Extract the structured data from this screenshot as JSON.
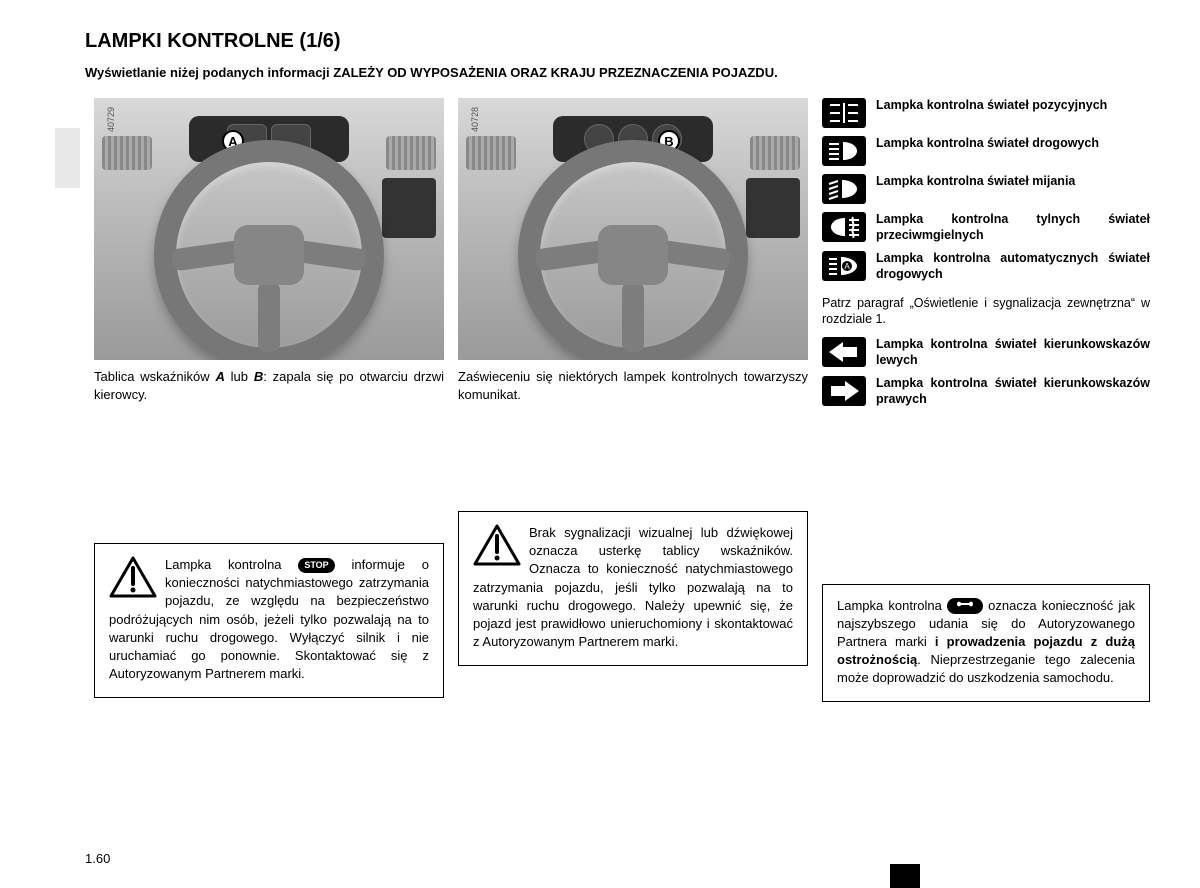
{
  "page": {
    "title": "LAMPKI KONTROLNE (1/6)",
    "subtitle": "Wyświetlanie niżej podanych informacji ZALEŻY OD WYPOSAŻENIA ORAZ KRAJU PRZEZNACZENIA POJAZDU.",
    "number": "1.60"
  },
  "figures": {
    "a": {
      "ref": "40729",
      "callout": "A"
    },
    "b": {
      "ref": "40728",
      "callout": "B"
    }
  },
  "captions": {
    "left_pre": "Tablica wskaźników ",
    "left_a": "A",
    "left_mid": " lub ",
    "left_b": "B",
    "left_post": ": zapala się po otwarciu drzwi kierowcy.",
    "mid": "Zaświeceniu się niektórych lampek kontrolnych towarzyszy komunikat."
  },
  "warn": {
    "left_pre": "Lampka kontrolna ",
    "left_post": " informuje o konieczności natychmiastowego zatrzymania pojazdu, ze względu na bezpieczeństwo podróżujących nim osób, jeżeli tylko pozwalają na to warunki ruchu drogowego. Wyłączyć silnik i nie uruchamiać go ponownie. Skontaktować się z Autoryzowanym Partnerem marki.",
    "mid": "Brak sygnalizacji wizualnej lub dźwiękowej oznacza usterkę tablicy wskaźników. Oznacza to konieczność natychmiastowego zatrzymania pojazdu, jeśli tylko pozwalają na to warunki ruchu drogowego. Należy upewnić się, że pojazd jest prawidłowo unieruchomiony i skontaktować z Autoryzowanym Partnerem marki.",
    "right_pre": "Lampka kontrolna ",
    "right_mid1": " oznacza konieczność jak najszybszego udania się do Autoryzowanego Partnera marki ",
    "right_bold": "i prowadzenia pojazdu z dużą ostrożnością",
    "right_post": ". Nieprzestrzeganie tego zalecenia może doprowadzić do uszkodzenia samochodu."
  },
  "stop_label": "STOP",
  "indicators": [
    {
      "label": "Lampka kontrolna świateł pozycyjnych",
      "icon": "position"
    },
    {
      "label": "Lampka kontrolna świateł drogowych",
      "icon": "high-beam"
    },
    {
      "label": "Lampka kontrolna świateł mijania",
      "icon": "low-beam"
    },
    {
      "label": "Lampka kontrolna tylnych świateł przeciwmgielnych",
      "icon": "rear-fog"
    },
    {
      "label": "Lampka kontrolna automatycznych świateł drogowych",
      "icon": "auto-high"
    }
  ],
  "ref_text": "Patrz paragraf „Oświetlenie i sygnalizacja zewnętrzna“ w rozdziale 1.",
  "turn_indicators": [
    {
      "label": "Lampka kontrolna świateł kierunkowskazów lewych",
      "icon": "arrow-left"
    },
    {
      "label": "Lampka kontrolna świateł kierunkowskazów prawych",
      "icon": "arrow-right"
    }
  ],
  "colors": {
    "icon_bg": "#000000",
    "icon_fg": "#ffffff"
  }
}
